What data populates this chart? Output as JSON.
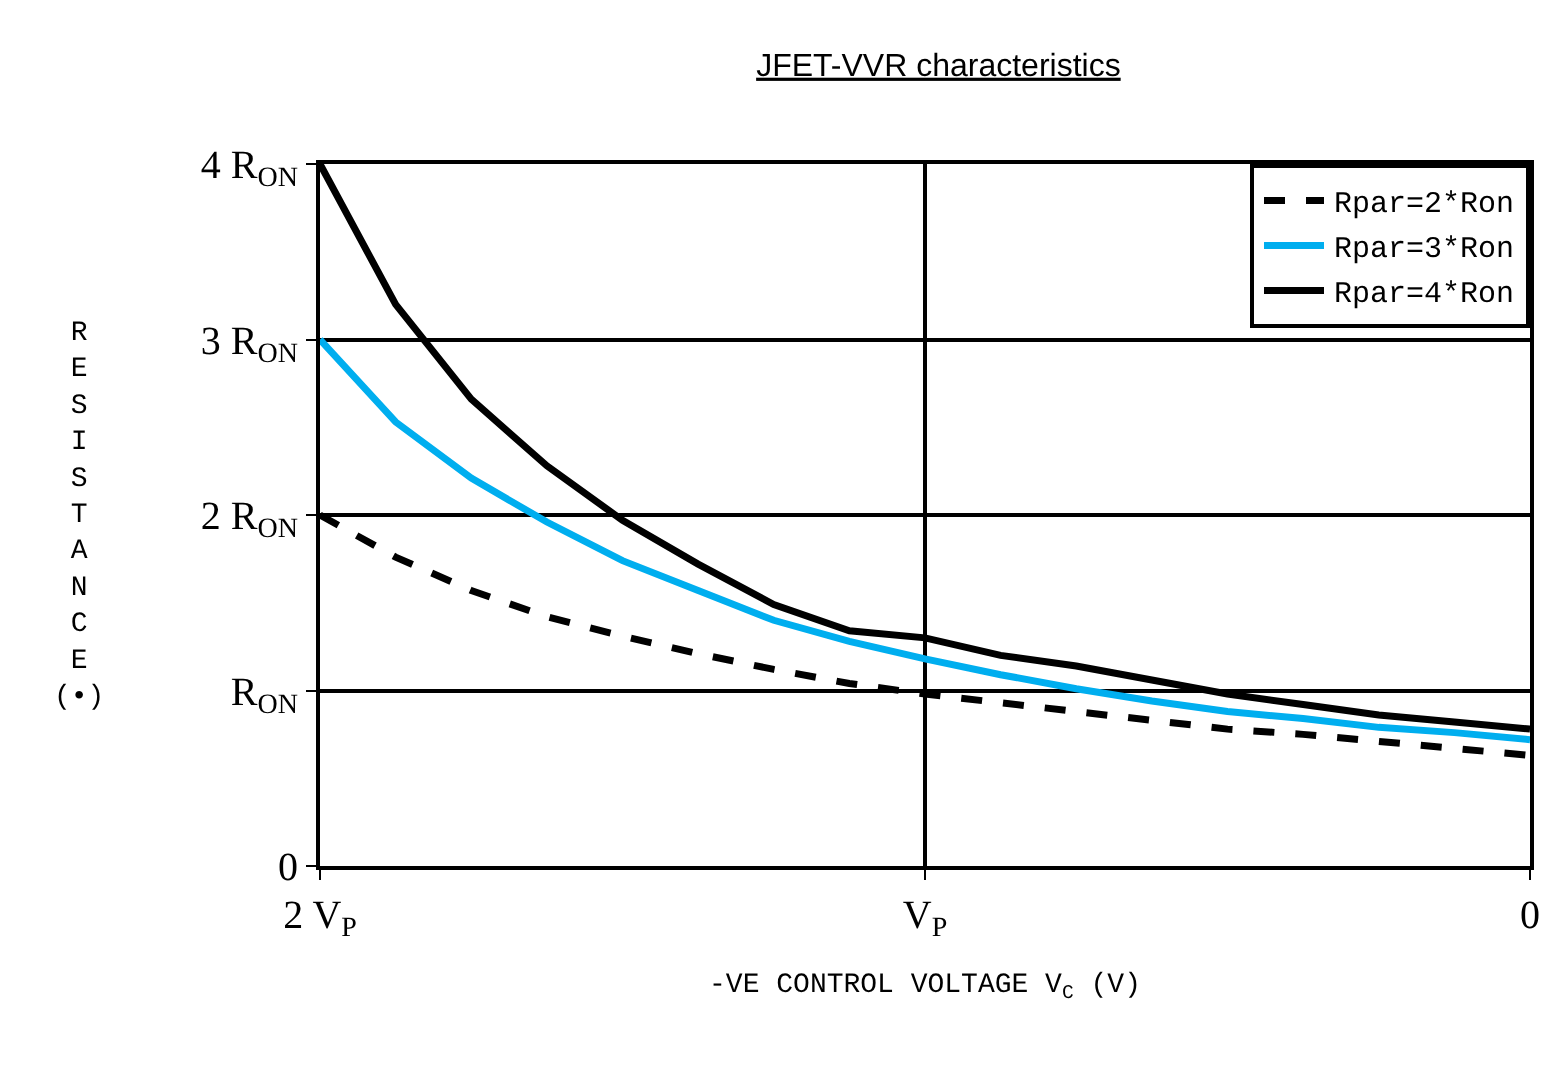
{
  "chart_data": {
    "type": "line",
    "title": "JFET-VVR characteristics",
    "xlabel": "-VE CONTROL VOLTAGE V$_{C}$ (V)",
    "ylabel": "RESISTANCE (•)",
    "categories": [
      "2 V$_{P}$",
      null,
      null,
      null,
      null,
      null,
      null,
      null,
      "V$_{P}$",
      null,
      null,
      null,
      null,
      null,
      null,
      null,
      "0"
    ],
    "ylim": [
      0,
      4
    ],
    "yticks": [
      0,
      {
        "value": 1,
        "label": "R$_{ON}$"
      },
      {
        "value": 2,
        "label": "2 R$_{ON}$"
      },
      {
        "value": 3,
        "label": "3 R$_{ON}$"
      },
      {
        "value": 4,
        "label": "4 R$_{ON}$"
      }
    ],
    "grid": true,
    "legend": "top right",
    "series": [
      {
        "name": "Rpar=2*Ron",
        "color": "#000000",
        "line_style": "dashed",
        "values": [
          2.0,
          1.76,
          1.57,
          1.42,
          1.31,
          1.21,
          1.12,
          1.04,
          0.98,
          0.93,
          0.88,
          0.83,
          0.78,
          0.75,
          0.71,
          0.67,
          0.63
        ]
      },
      {
        "name": "Rpar=3*Ron",
        "color": "#00aeef",
        "line_style": "solid",
        "values": [
          3.0,
          2.53,
          2.21,
          1.96,
          1.74,
          1.57,
          1.4,
          1.28,
          1.18,
          1.09,
          1.01,
          0.94,
          0.88,
          0.84,
          0.79,
          0.76,
          0.72
        ]
      },
      {
        "name": "Rpar=4*Ron",
        "color": "#000000",
        "line_style": "solid",
        "values": [
          4.0,
          3.2,
          2.66,
          2.28,
          1.97,
          1.72,
          1.49,
          1.34,
          1.3,
          1.2,
          1.14,
          1.06,
          0.98,
          0.92,
          0.86,
          0.82,
          0.78
        ]
      }
    ]
  }
}
